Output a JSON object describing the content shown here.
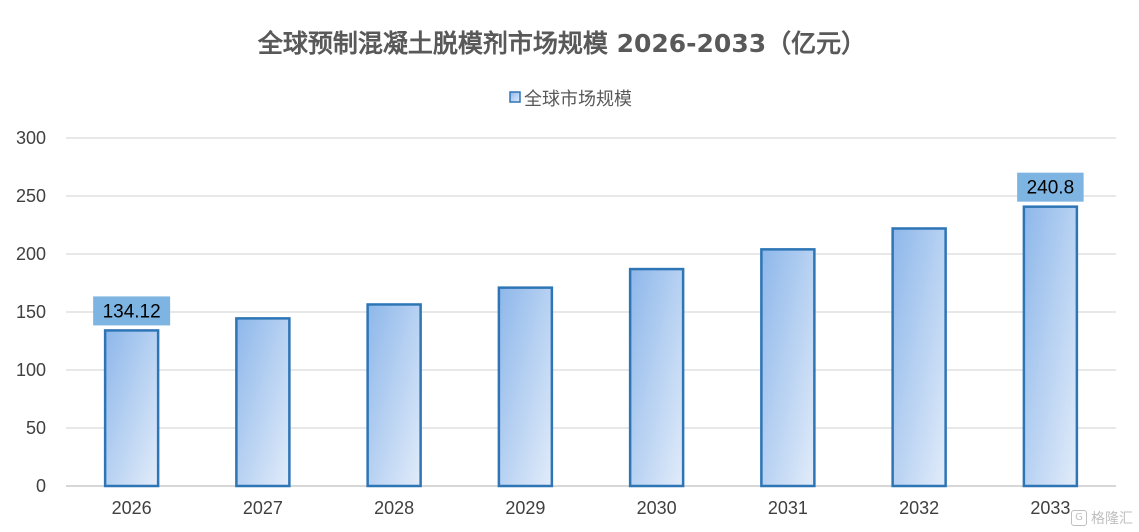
{
  "watermark": {
    "text": "格隆汇",
    "icon": "G"
  },
  "chart_data": {
    "type": "bar",
    "title": "全球预制混凝土脱模剂市场规模 2026-2033（亿元）",
    "legend": {
      "entries": [
        "全球市场规模"
      ],
      "position": "top-center"
    },
    "categories": [
      "2026",
      "2027",
      "2028",
      "2029",
      "2030",
      "2031",
      "2032",
      "2033"
    ],
    "series": [
      {
        "name": "全球市场规模",
        "values": [
          134.12,
          144.5,
          156.5,
          171,
          187,
          204,
          222,
          240.8
        ]
      }
    ],
    "data_labels": [
      {
        "category": "2026",
        "text": "134.12"
      },
      {
        "category": "2033",
        "text": "240.8"
      }
    ],
    "ylim": [
      0,
      300
    ],
    "yticks": [
      0,
      50,
      100,
      150,
      200,
      250,
      300
    ],
    "grid": true,
    "colors": {
      "bar_border": "#2e75b6",
      "bar_fill_dark": "#8db7ea",
      "bar_fill_light": "#e2ecfa",
      "label_bg": "#7eb4e2",
      "grid": "#d9d9d9",
      "axis": "#bfbfbf"
    }
  }
}
